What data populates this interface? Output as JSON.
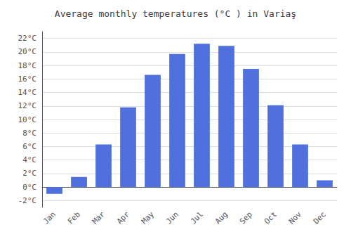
{
  "chart_data": {
    "type": "bar",
    "title": "Average monthly temperatures (°C ) in Variaş",
    "categories": [
      "Jan",
      "Feb",
      "Mar",
      "Apr",
      "May",
      "Jun",
      "Jul",
      "Aug",
      "Sep",
      "Oct",
      "Nov",
      "Dec"
    ],
    "values": [
      -1.0,
      1.5,
      6.3,
      11.8,
      16.6,
      19.7,
      21.2,
      20.9,
      17.5,
      12.1,
      6.3,
      1.0
    ],
    "ylim": [
      -3,
      23
    ],
    "yticks": [
      {
        "value": -2,
        "label": "-2°C"
      },
      {
        "value": 0,
        "label": "0°C"
      },
      {
        "value": 2,
        "label": "2°C"
      },
      {
        "value": 4,
        "label": "4°C"
      },
      {
        "value": 6,
        "label": "6°C"
      },
      {
        "value": 8,
        "label": "8°C"
      },
      {
        "value": 10,
        "label": "10°C"
      },
      {
        "value": 12,
        "label": "12°C"
      },
      {
        "value": 14,
        "label": "14°C"
      },
      {
        "value": 16,
        "label": "16°C"
      },
      {
        "value": 18,
        "label": "18°C"
      },
      {
        "value": 20,
        "label": "20°C"
      },
      {
        "value": 22,
        "label": "22°C"
      }
    ],
    "grid": true
  }
}
